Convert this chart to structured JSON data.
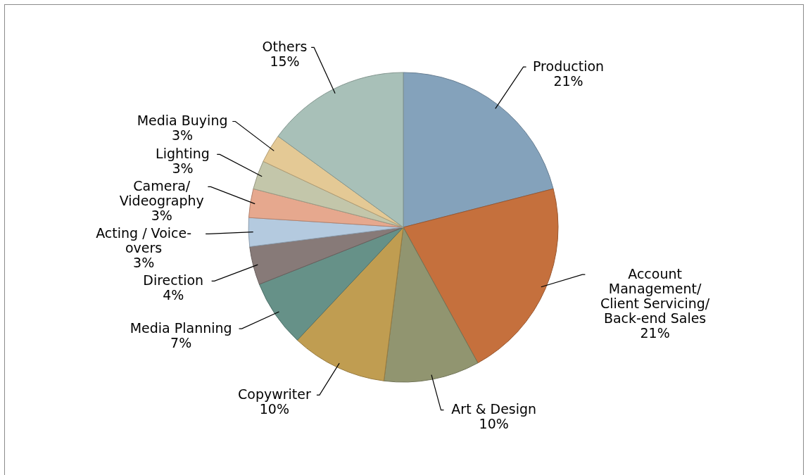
{
  "chart_data": {
    "type": "pie",
    "categories": [
      "Production",
      "Account Management/ Client Servicing/ Back-end Sales",
      "Art & Design",
      "Copywriter",
      "Media Planning",
      "Direction",
      "Acting / Voice-overs",
      "Camera/ Videography",
      "Lighting",
      "Media Buying",
      "Others"
    ],
    "values": [
      21,
      21,
      10,
      10,
      7,
      4,
      3,
      3,
      3,
      3,
      15
    ],
    "value_labels": [
      "21%",
      "21%",
      "10%",
      "10%",
      "7%",
      "4%",
      "3%",
      "3%",
      "3%",
      "3%",
      "15%"
    ],
    "colors": [
      "#84a2bb",
      "#c5703d",
      "#919570",
      "#c09d51",
      "#669188",
      "#877a78",
      "#b4cadf",
      "#e6a88e",
      "#c3c6aa",
      "#e4c995",
      "#a8c0b8"
    ]
  }
}
